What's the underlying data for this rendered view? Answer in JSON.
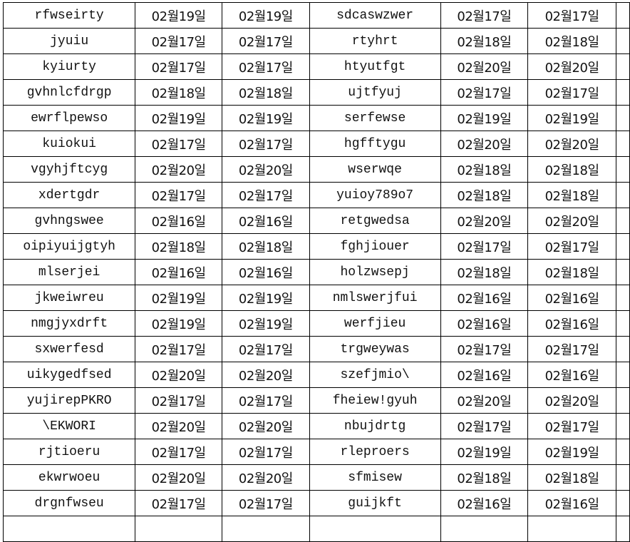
{
  "sheet": {
    "rows": [
      [
        "rfwseirty",
        "02월19일",
        "02월19일",
        "sdcaswzwer",
        "02월17일",
        "02월17일"
      ],
      [
        "jyuiu",
        "02월17일",
        "02월17일",
        "rtyhrt",
        "02월18일",
        "02월18일"
      ],
      [
        "kyiurty",
        "02월17일",
        "02월17일",
        "htyutfgt",
        "02월20일",
        "02월20일"
      ],
      [
        "gvhnlcfdrgp",
        "02월18일",
        "02월18일",
        "ujtfyuj",
        "02월17일",
        "02월17일"
      ],
      [
        "ewrflpewso",
        "02월19일",
        "02월19일",
        "serfewse",
        "02월19일",
        "02월19일"
      ],
      [
        "kuiokui",
        "02월17일",
        "02월17일",
        "hgfftygu",
        "02월20일",
        "02월20일"
      ],
      [
        "vgyhjftcyg",
        "02월20일",
        "02월20일",
        "wserwqe",
        "02월18일",
        "02월18일"
      ],
      [
        "xdertgdr",
        "02월17일",
        "02월17일",
        "yuioy789o7",
        "02월18일",
        "02월18일"
      ],
      [
        "gvhngswee",
        "02월16일",
        "02월16일",
        "retgwedsa",
        "02월20일",
        "02월20일"
      ],
      [
        "oipiyuijgtyh",
        "02월18일",
        "02월18일",
        "fghjiouer",
        "02월17일",
        "02월17일"
      ],
      [
        "mlserjei",
        "02월16일",
        "02월16일",
        "holzwsepj",
        "02월18일",
        "02월18일"
      ],
      [
        "jkweiwreu",
        "02월19일",
        "02월19일",
        "nmlswerjfui",
        "02월16일",
        "02월16일"
      ],
      [
        "nmgjyxdrft",
        "02월19일",
        "02월19일",
        "werfjieu",
        "02월16일",
        "02월16일"
      ],
      [
        "sxwerfesd",
        "02월17일",
        "02월17일",
        "trgweywas",
        "02월17일",
        "02월17일"
      ],
      [
        "uikygedfsed",
        "02월20일",
        "02월20일",
        "szefjmio\\",
        "02월16일",
        "02월16일"
      ],
      [
        "yujirepPKRO",
        "02월17일",
        "02월17일",
        "fheiew!gyuh",
        "02월20일",
        "02월20일"
      ],
      [
        "\\EKWORI",
        "02월20일",
        "02월20일",
        "nbujdrtg",
        "02월17일",
        "02월17일"
      ],
      [
        "rjtioeru",
        "02월17일",
        "02월17일",
        "rleproers",
        "02월19일",
        "02월19일"
      ],
      [
        "ekwrwoeu",
        "02월20일",
        "02월20일",
        "sfmisew",
        "02월18일",
        "02월18일"
      ],
      [
        "drgnfwseu",
        "02월17일",
        "02월17일",
        "guijkft",
        "02월16일",
        "02월16일"
      ]
    ]
  }
}
